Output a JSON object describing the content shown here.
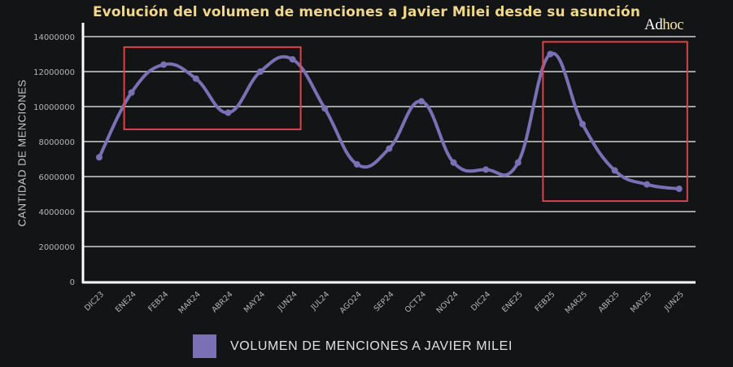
{
  "title": "Evolución del volumen de menciones a Javier Milei desde su asunción",
  "logo": {
    "part1": "Ad",
    "part2": "hoc"
  },
  "colors": {
    "background": "#121416",
    "title": "#f0d78c",
    "line": "#7b6fb5",
    "highlight_box": "#d9434a",
    "grid": "#d0d0d0",
    "axis": "#ffffff"
  },
  "legend": {
    "label": "VOLUMEN DE MENCIONES A JAVIER MILEI",
    "swatch_color": "#7b6fb5"
  },
  "chart_data": {
    "type": "line",
    "title": "Evolución del volumen de menciones a Javier Milei desde su asunción",
    "xlabel": "",
    "ylabel": "CANTIDAD DE MENCIONES",
    "ylim": [
      0,
      14000000
    ],
    "yticks": [
      0,
      2000000,
      4000000,
      6000000,
      8000000,
      10000000,
      12000000,
      14000000
    ],
    "ytick_labels": [
      "0",
      "2000000",
      "4000000",
      "6000000",
      "8000000",
      "10000000",
      "12000000",
      "14000000"
    ],
    "grid": true,
    "legend_position": "bottom",
    "smooth": true,
    "categories": [
      "DIC23",
      "ENE24",
      "FEB24",
      "MAR24",
      "ABR24",
      "MAY24",
      "JUN24",
      "JUL24",
      "AGO24",
      "SEP24",
      "OCT24",
      "NOV24",
      "DIC24",
      "ENE25",
      "FEB25",
      "MAR25",
      "ABR25",
      "MAY25",
      "JUN25"
    ],
    "series": [
      {
        "name": "VOLUMEN DE MENCIONES A JAVIER MILEI",
        "values": [
          7100000,
          10800000,
          12400000,
          11600000,
          9650000,
          12000000,
          12700000,
          9900000,
          6700000,
          7600000,
          10300000,
          6800000,
          6400000,
          6800000,
          13000000,
          9000000,
          6350000,
          5550000,
          5300000
        ]
      }
    ],
    "annotations": [
      {
        "type": "rectangle",
        "color": "#d9434a",
        "from": "ENE24",
        "to": "JUN24",
        "y_range": [
          8700000,
          13400000
        ]
      },
      {
        "type": "rectangle",
        "color": "#d9434a",
        "from": "FEB25",
        "to": "JUN25",
        "y_range": [
          4600000,
          13700000
        ]
      }
    ]
  }
}
